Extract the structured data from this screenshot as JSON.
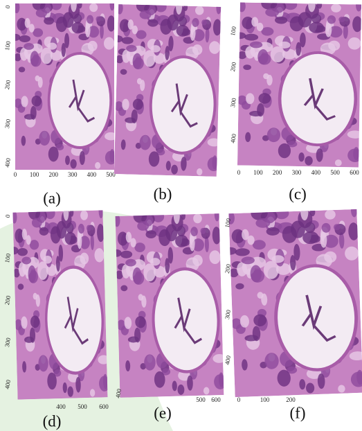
{
  "panels": [
    {
      "label": "(a)",
      "yticks": [
        "0",
        "100",
        "200",
        "300",
        "400"
      ],
      "xticks": [
        "0",
        "100",
        "200",
        "300",
        "400",
        "500"
      ]
    },
    {
      "label": "(b)",
      "yticks": [],
      "xticks": []
    },
    {
      "label": "(c)",
      "yticks": [
        "100",
        "200",
        "300",
        "400"
      ],
      "xticks": [
        "0",
        "100",
        "200",
        "300",
        "400",
        "500",
        "600"
      ]
    },
    {
      "label": "(d)",
      "yticks": [
        "0",
        "100",
        "200",
        "300",
        "400"
      ],
      "xticks": [
        "400",
        "500",
        "600"
      ]
    },
    {
      "label": "(e)",
      "yticks": [
        "400"
      ],
      "xticks": [
        "500",
        "600"
      ]
    },
    {
      "label": "(f)",
      "yticks": [
        "100",
        "200",
        "300",
        "400"
      ],
      "xticks": [
        "0",
        "100",
        "200"
      ]
    }
  ]
}
